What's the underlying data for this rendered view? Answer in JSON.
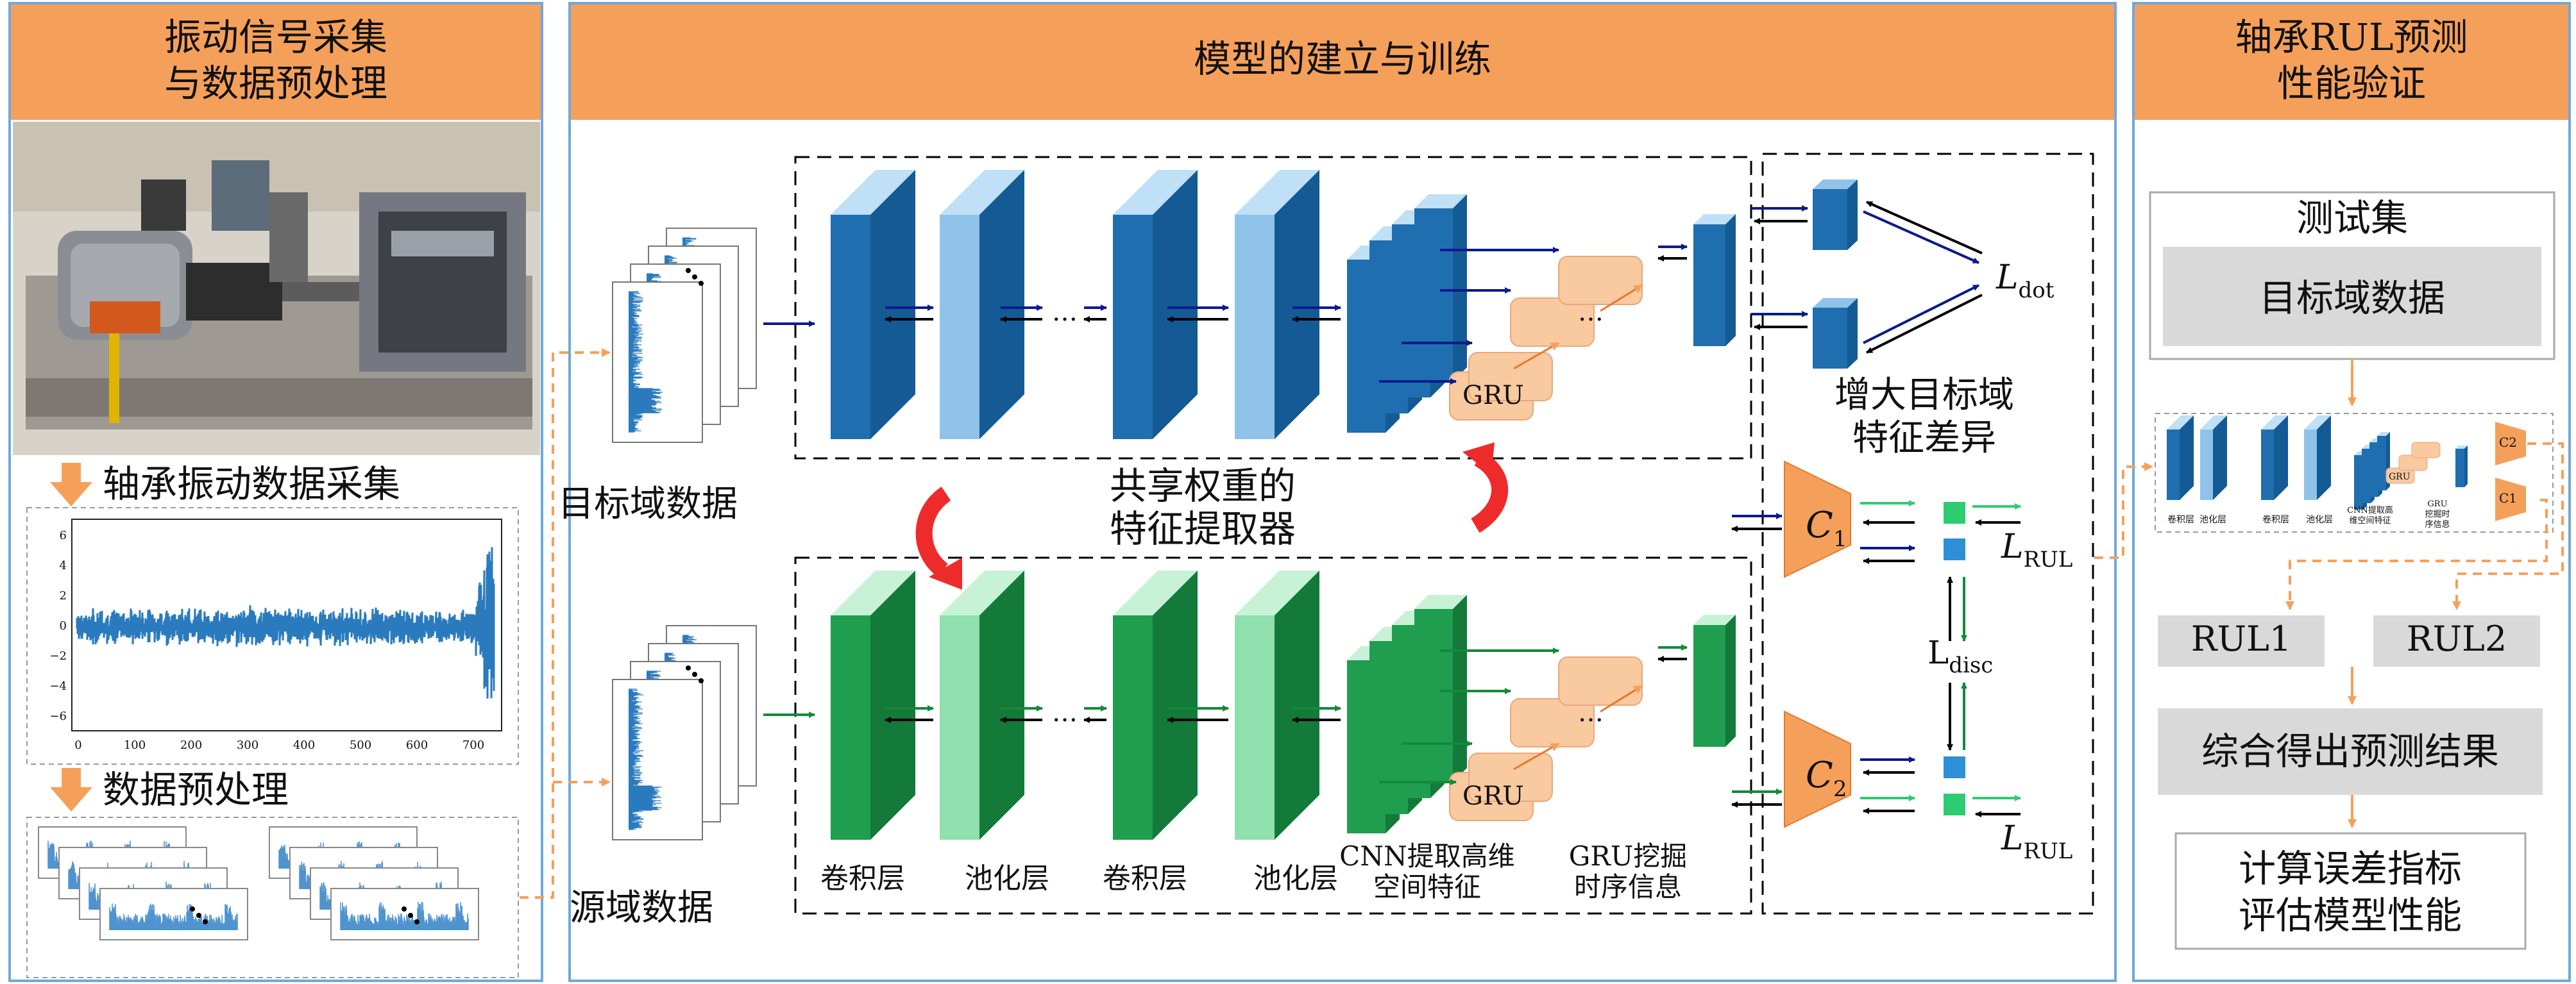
{
  "panels": {
    "left": {
      "title_line1": "振动信号采集",
      "title_line2": "与数据预处理",
      "step1": "轴承振动数据采集",
      "step2": "数据预处理",
      "ticks_y": [
        "6",
        "4",
        "2",
        "0",
        "−2",
        "−4",
        "−6"
      ],
      "ticks_x": [
        "0",
        "100",
        "200",
        "300",
        "400",
        "500",
        "600",
        "700"
      ]
    },
    "middle": {
      "title": "模型的建立与训练",
      "target_data": "目标域数据",
      "source_data": "源域数据",
      "shared_line1": "共享权重的",
      "shared_line2": "特征提取器",
      "gru": "GRU",
      "ellipsis": "…",
      "labels": {
        "conv1": "卷积层",
        "pool1": "池化层",
        "conv2": "卷积层",
        "pool2": "池化层",
        "cnn_line1": "CNN提取高维",
        "cnn_line2": "空间特征",
        "gru_line1": "GRU挖掘",
        "gru_line2": "时序信息"
      },
      "increase_line1": "增大目标域",
      "increase_line2": "特征差异",
      "l_dot_main": "L",
      "l_dot_sub": "dot",
      "l_rul_main": "L",
      "l_rul_sub": "RUL",
      "l_disc_main": "L",
      "l_disc_sub": "disc",
      "c_main": "C",
      "c1_sub": "1",
      "c2_sub": "2"
    },
    "right": {
      "title_line1": "轴承RUL预测",
      "title_line2": "性能验证",
      "test_set": "测试集",
      "target_domain": "目标域数据",
      "rul1": "RUL1",
      "rul2": "RUL2",
      "combine": "综合得出预测结果",
      "metric_line1": "计算误差指标",
      "metric_line2": "评估模型性能",
      "mini": {
        "conv": "卷积层",
        "pool": "池化层",
        "cnn": "CNN提取高",
        "cnn2": "维空间特征",
        "gru1": "GRU",
        "gru2": "挖掘时",
        "gru3": "序信息",
        "c1": "C1",
        "c2": "C2",
        "gru_box": "GRU"
      }
    }
  },
  "colors": {
    "orange": "#f5a05a",
    "orange_dark": "#e8782a",
    "panel_border": "#6fa8dc",
    "blue_dark": "#1f6fb0",
    "blue_light": "#8fc3ea",
    "green_dark": "#1f9e4f",
    "green_light": "#8fe0ac",
    "gru_box": "#f9c9a0",
    "navy_arrow": "#0a1a8c",
    "red_arrow": "#ee2b2b",
    "gray_box": "#d9d9d9"
  }
}
